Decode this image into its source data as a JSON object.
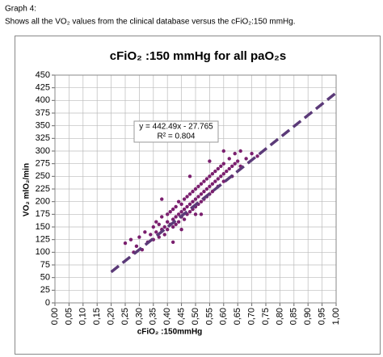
{
  "header": {
    "label": "Graph 4:",
    "caption": "Shows all the VO₂ values from the clinical database versus the cFiO₂:150 mmHg."
  },
  "chart_data": {
    "type": "scatter",
    "title": "cFiO₂ :150 mmHg for all paO₂s",
    "x_label": "cFiO₂ :150mmHg",
    "y_label": "VO₂ mlO₂/min",
    "annotations": [
      "y = 442.49x - 27.765",
      "R² = 0.804"
    ],
    "xlim": [
      0,
      1
    ],
    "ylim": [
      0,
      450
    ],
    "xticks": [
      {
        "value": 0,
        "label": "0,00"
      },
      {
        "value": 0.05,
        "label": "0,05"
      },
      {
        "value": 0.1,
        "label": "0,10"
      },
      {
        "value": 0.15,
        "label": "0,15"
      },
      {
        "value": 0.2,
        "label": "0,20"
      },
      {
        "value": 0.25,
        "label": "0,25"
      },
      {
        "value": 0.3,
        "label": "0,30"
      },
      {
        "value": 0.35,
        "label": "0,35"
      },
      {
        "value": 0.4,
        "label": "0,40"
      },
      {
        "value": 0.45,
        "label": "0,45"
      },
      {
        "value": 0.5,
        "label": "0,50"
      },
      {
        "value": 0.55,
        "label": "0,55"
      },
      {
        "value": 0.6,
        "label": "0,60"
      },
      {
        "value": 0.65,
        "label": "0,65"
      },
      {
        "value": 0.7,
        "label": "0,70"
      },
      {
        "value": 0.75,
        "label": "0,75"
      },
      {
        "value": 0.8,
        "label": "0,80"
      },
      {
        "value": 0.85,
        "label": "0,85"
      },
      {
        "value": 0.9,
        "label": "0,90"
      },
      {
        "value": 0.95,
        "label": "0,95"
      },
      {
        "value": 1,
        "label": "1,00"
      }
    ],
    "yticks": [
      0,
      25,
      50,
      75,
      100,
      125,
      150,
      175,
      200,
      225,
      250,
      275,
      300,
      325,
      350,
      375,
      400,
      425,
      450
    ],
    "grid": true,
    "series": [
      {
        "color": "#7a1f6e",
        "x": [
          0.25,
          0.27,
          0.28,
          0.29,
          0.3,
          0.31,
          0.32,
          0.33,
          0.34,
          0.35,
          0.35,
          0.36,
          0.36,
          0.37,
          0.37,
          0.38,
          0.38,
          0.39,
          0.39,
          0.4,
          0.4,
          0.4,
          0.41,
          0.41,
          0.42,
          0.42,
          0.42,
          0.43,
          0.43,
          0.43,
          0.44,
          0.44,
          0.44,
          0.45,
          0.45,
          0.45,
          0.46,
          0.46,
          0.46,
          0.47,
          0.47,
          0.47,
          0.48,
          0.48,
          0.48,
          0.49,
          0.49,
          0.49,
          0.5,
          0.5,
          0.5,
          0.5,
          0.51,
          0.51,
          0.51,
          0.52,
          0.52,
          0.52,
          0.53,
          0.53,
          0.53,
          0.54,
          0.54,
          0.54,
          0.55,
          0.55,
          0.55,
          0.56,
          0.56,
          0.56,
          0.57,
          0.57,
          0.58,
          0.58,
          0.58,
          0.59,
          0.59,
          0.6,
          0.6,
          0.6,
          0.61,
          0.62,
          0.62,
          0.63,
          0.63,
          0.64,
          0.64,
          0.65,
          0.66,
          0.66,
          0.68,
          0.7,
          0.72,
          0.38,
          0.45,
          0.52,
          0.55,
          0.48,
          0.42,
          0.6
        ],
        "values": [
          118,
          125,
          100,
          112,
          130,
          105,
          140,
          120,
          135,
          150,
          125,
          160,
          140,
          130,
          155,
          145,
          170,
          150,
          135,
          160,
          175,
          145,
          155,
          180,
          165,
          150,
          185,
          170,
          190,
          155,
          175,
          200,
          160,
          180,
          195,
          170,
          185,
          205,
          165,
          190,
          175,
          210,
          195,
          180,
          215,
          200,
          185,
          220,
          205,
          190,
          225,
          175,
          210,
          230,
          195,
          215,
          200,
          235,
          220,
          240,
          205,
          225,
          245,
          210,
          230,
          250,
          215,
          235,
          255,
          220,
          240,
          260,
          245,
          265,
          230,
          250,
          270,
          255,
          275,
          240,
          260,
          265,
          285,
          270,
          250,
          275,
          295,
          280,
          300,
          270,
          285,
          295,
          290,
          205,
          145,
          175,
          280,
          250,
          120,
          300
        ]
      },
      {
        "type": "line",
        "color": "#5b3a78",
        "dashed": true,
        "x": [
          0.2,
          1.0
        ],
        "values": [
          61,
          415
        ]
      }
    ]
  }
}
